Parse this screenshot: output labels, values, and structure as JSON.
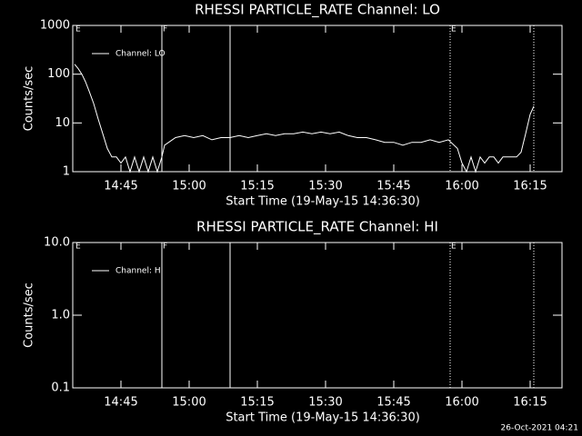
{
  "footer": "26-Oct-2021 04:21",
  "chart_data": [
    {
      "type": "line",
      "title": "RHESSI PARTICLE_RATE Channel: LO",
      "x_label": "Start Time (19-May-15 14:36:30)",
      "y_label": "Counts/sec",
      "log_y": true,
      "xlim": [
        874.4,
        982
      ],
      "ylim": [
        1,
        1000
      ],
      "xticks": [
        {
          "value": 885,
          "label": "14:45"
        },
        {
          "value": 900,
          "label": "15:00"
        },
        {
          "value": 915,
          "label": "15:15"
        },
        {
          "value": 930,
          "label": "15:30"
        },
        {
          "value": 945,
          "label": "15:45"
        },
        {
          "value": 960,
          "label": "16:00"
        },
        {
          "value": 975,
          "label": "16:15"
        }
      ],
      "yticks": [
        1,
        10,
        100,
        1000
      ],
      "markers": [
        {
          "x": 894.0,
          "style": "solid"
        },
        {
          "x": 909.0,
          "style": "solid"
        },
        {
          "x": 957.4,
          "style": "dotted"
        },
        {
          "x": 975.8,
          "style": "dotted"
        }
      ],
      "annotations": [
        {
          "text": "E",
          "x": 874.8
        },
        {
          "text": "F",
          "x": 894.0
        },
        {
          "text": "E",
          "x": 957.4
        }
      ],
      "x": [
        874.8,
        875.6,
        876.4,
        877.2,
        878,
        879,
        880,
        881,
        882,
        883,
        884,
        885,
        886,
        887,
        888,
        889,
        890,
        891,
        892,
        893,
        894,
        894.6,
        895.5,
        897,
        899,
        901,
        903,
        905,
        907,
        909,
        911,
        913,
        915,
        917,
        919,
        921,
        923,
        925,
        927,
        929,
        931,
        933,
        935,
        937,
        939,
        941,
        943,
        945,
        947,
        949,
        951,
        953,
        955,
        957,
        959,
        960,
        961,
        962,
        963,
        964,
        965,
        966,
        967,
        968,
        969,
        970,
        971,
        972,
        973,
        974,
        975,
        975.8
      ],
      "series": [
        {
          "name": "Channel: LO",
          "color": "#ffffff",
          "values": [
            160,
            130,
            100,
            70,
            45,
            25,
            12,
            6,
            3,
            2,
            2,
            1.5,
            2,
            1,
            2,
            1,
            2,
            1,
            2,
            1,
            2,
            3.5,
            4,
            5,
            5.5,
            5,
            5.5,
            4.5,
            5,
            5,
            5.5,
            5,
            5.5,
            6,
            5.5,
            6,
            6,
            6.5,
            6,
            6.5,
            6,
            6.5,
            5.5,
            5,
            5,
            4.5,
            4,
            4,
            3.5,
            4,
            4,
            4.5,
            4,
            4.5,
            3,
            1.5,
            1,
            2,
            1,
            2,
            1.5,
            2,
            2,
            1.5,
            2,
            2,
            2,
            2,
            2.5,
            6,
            15,
            22
          ]
        }
      ]
    },
    {
      "type": "line",
      "title": "RHESSI PARTICLE_RATE Channel: HI",
      "x_label": "Start Time (19-May-15 14:36:30)",
      "y_label": "Counts/sec",
      "log_y": true,
      "xlim": [
        874.4,
        982
      ],
      "ylim": [
        0.1,
        10
      ],
      "xticks": [
        {
          "value": 885,
          "label": "14:45"
        },
        {
          "value": 900,
          "label": "15:00"
        },
        {
          "value": 915,
          "label": "15:15"
        },
        {
          "value": 930,
          "label": "15:30"
        },
        {
          "value": 945,
          "label": "15:45"
        },
        {
          "value": 960,
          "label": "16:00"
        },
        {
          "value": 975,
          "label": "16:15"
        }
      ],
      "yticks": [
        0.1,
        {
          "value": 1,
          "label": "1.0"
        },
        {
          "value": 10,
          "label": "10.0"
        }
      ],
      "markers": [
        {
          "x": 894.0,
          "style": "solid"
        },
        {
          "x": 909.0,
          "style": "solid"
        },
        {
          "x": 957.4,
          "style": "dotted"
        },
        {
          "x": 975.8,
          "style": "dotted"
        }
      ],
      "annotations": [
        {
          "text": "E",
          "x": 874.8
        },
        {
          "text": "F",
          "x": 894.0
        },
        {
          "text": "E",
          "x": 957.4
        }
      ],
      "x": [],
      "series": [
        {
          "name": "Channel: HI",
          "color": "#ffffff",
          "values": []
        }
      ]
    }
  ]
}
